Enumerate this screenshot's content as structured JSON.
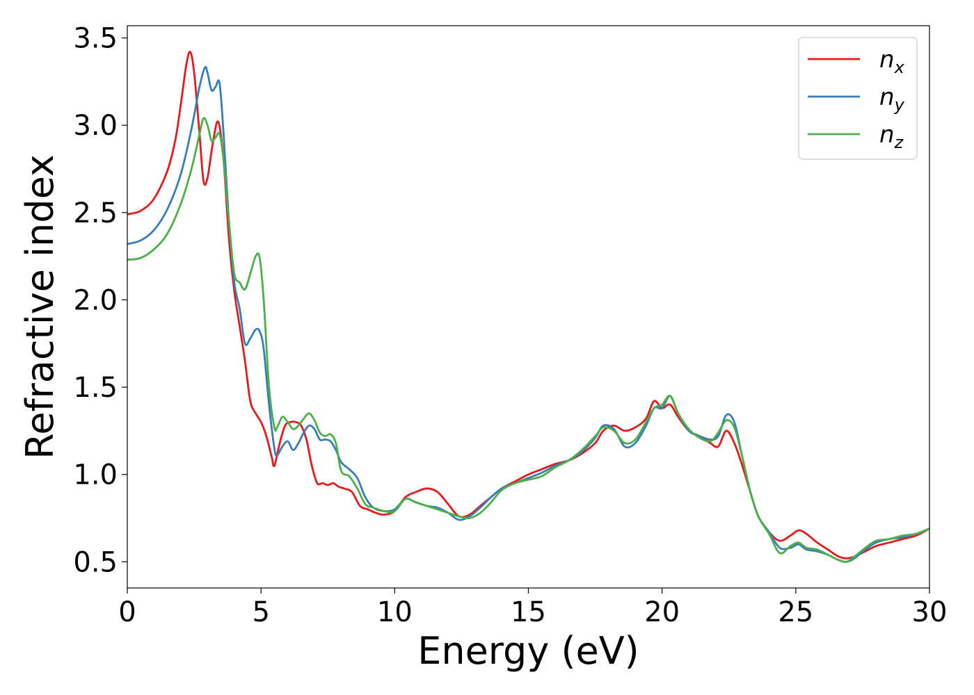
{
  "chart_data": {
    "type": "line",
    "xlabel": "Energy (eV)",
    "ylabel": "Refractive index",
    "xlim": [
      0,
      30
    ],
    "ylim": [
      0.35,
      3.57
    ],
    "xticks": [
      0,
      5,
      10,
      15,
      20,
      25,
      30
    ],
    "xtick_labels": [
      "0",
      "5",
      "10",
      "15",
      "20",
      "25",
      "30"
    ],
    "yticks": [
      0.5,
      1.0,
      1.5,
      2.0,
      2.5,
      3.0,
      3.5
    ],
    "ytick_labels": [
      "0.5",
      "1.0",
      "1.5",
      "2.0",
      "2.5",
      "3.0",
      "3.5"
    ],
    "grid": false,
    "legend_position": "top-right",
    "series": [
      {
        "name": "n_x",
        "label_main": "n",
        "label_sub": "x",
        "color": "#e41a1c",
        "x": [
          0,
          0.5,
          1.0,
          1.5,
          1.8,
          2.0,
          2.2,
          2.35,
          2.5,
          2.7,
          2.85,
          3.0,
          3.2,
          3.4,
          3.6,
          3.8,
          4.0,
          4.2,
          4.4,
          4.6,
          4.8,
          5.0,
          5.2,
          5.4,
          5.5,
          5.7,
          5.9,
          6.1,
          6.3,
          6.5,
          6.7,
          6.9,
          7.1,
          7.3,
          7.5,
          7.7,
          7.9,
          8.1,
          8.4,
          8.7,
          9.0,
          9.3,
          9.6,
          10.0,
          10.4,
          10.8,
          11.2,
          11.6,
          12.0,
          12.4,
          12.8,
          13.2,
          13.6,
          14.0,
          14.5,
          15.0,
          15.5,
          16.0,
          16.5,
          17.0,
          17.5,
          17.8,
          18.2,
          18.6,
          19.0,
          19.4,
          19.7,
          20.0,
          20.3,
          20.6,
          21.0,
          21.4,
          21.8,
          22.1,
          22.4,
          22.7,
          23.0,
          23.3,
          23.6,
          24.0,
          24.4,
          24.8,
          25.1,
          25.4,
          25.8,
          26.2,
          26.6,
          26.9,
          27.2,
          27.6,
          28.0,
          28.5,
          29.0,
          29.5,
          30.0
        ],
        "y": [
          2.49,
          2.51,
          2.58,
          2.74,
          2.92,
          3.12,
          3.34,
          3.42,
          3.3,
          2.95,
          2.68,
          2.7,
          2.9,
          3.02,
          2.8,
          2.35,
          2.05,
          1.85,
          1.65,
          1.42,
          1.35,
          1.3,
          1.22,
          1.1,
          1.05,
          1.18,
          1.28,
          1.3,
          1.3,
          1.28,
          1.2,
          1.05,
          0.95,
          0.95,
          0.94,
          0.95,
          0.93,
          0.92,
          0.9,
          0.82,
          0.8,
          0.78,
          0.77,
          0.79,
          0.87,
          0.9,
          0.92,
          0.9,
          0.83,
          0.76,
          0.77,
          0.82,
          0.87,
          0.92,
          0.96,
          1.0,
          1.03,
          1.06,
          1.08,
          1.12,
          1.18,
          1.25,
          1.28,
          1.25,
          1.27,
          1.32,
          1.42,
          1.38,
          1.4,
          1.33,
          1.25,
          1.22,
          1.18,
          1.16,
          1.25,
          1.18,
          1.05,
          0.9,
          0.76,
          0.67,
          0.62,
          0.65,
          0.68,
          0.66,
          0.61,
          0.57,
          0.53,
          0.52,
          0.53,
          0.56,
          0.59,
          0.61,
          0.63,
          0.65,
          0.69
        ]
      },
      {
        "name": "n_y",
        "label_main": "n",
        "label_sub": "y",
        "color": "#377eb8",
        "x": [
          0,
          0.5,
          1.0,
          1.5,
          2.0,
          2.4,
          2.7,
          2.9,
          3.0,
          3.15,
          3.3,
          3.45,
          3.6,
          3.8,
          4.0,
          4.2,
          4.4,
          4.6,
          4.8,
          4.95,
          5.1,
          5.3,
          5.5,
          5.6,
          5.8,
          6.0,
          6.2,
          6.4,
          6.6,
          6.8,
          7.0,
          7.2,
          7.4,
          7.6,
          7.8,
          8.0,
          8.3,
          8.6,
          8.9,
          9.2,
          9.6,
          10.0,
          10.4,
          10.8,
          11.2,
          11.6,
          12.0,
          12.4,
          12.8,
          13.2,
          13.6,
          14.0,
          14.5,
          15.0,
          15.5,
          16.0,
          16.5,
          17.0,
          17.5,
          17.8,
          18.2,
          18.6,
          19.0,
          19.4,
          19.7,
          20.0,
          20.3,
          20.6,
          21.0,
          21.4,
          21.8,
          22.1,
          22.4,
          22.7,
          23.0,
          23.3,
          23.6,
          24.0,
          24.4,
          24.8,
          25.1,
          25.4,
          25.8,
          26.2,
          26.6,
          26.9,
          27.2,
          27.6,
          28.0,
          28.5,
          29.0,
          29.5,
          30.0
        ],
        "y": [
          2.32,
          2.34,
          2.4,
          2.52,
          2.72,
          2.98,
          3.22,
          3.33,
          3.3,
          3.2,
          3.22,
          3.24,
          2.95,
          2.45,
          2.1,
          1.95,
          1.75,
          1.78,
          1.83,
          1.82,
          1.72,
          1.4,
          1.15,
          1.11,
          1.16,
          1.19,
          1.14,
          1.18,
          1.24,
          1.28,
          1.26,
          1.2,
          1.2,
          1.19,
          1.14,
          1.07,
          1.03,
          0.98,
          0.87,
          0.81,
          0.79,
          0.8,
          0.86,
          0.84,
          0.82,
          0.81,
          0.78,
          0.74,
          0.76,
          0.81,
          0.87,
          0.92,
          0.95,
          0.98,
          1.01,
          1.05,
          1.08,
          1.13,
          1.21,
          1.28,
          1.26,
          1.16,
          1.18,
          1.28,
          1.38,
          1.38,
          1.45,
          1.35,
          1.25,
          1.22,
          1.2,
          1.22,
          1.34,
          1.3,
          1.1,
          0.9,
          0.76,
          0.67,
          0.58,
          0.58,
          0.6,
          0.57,
          0.56,
          0.54,
          0.51,
          0.5,
          0.52,
          0.57,
          0.61,
          0.63,
          0.64,
          0.66,
          0.69
        ]
      },
      {
        "name": "n_z",
        "label_main": "n",
        "label_sub": "z",
        "color": "#4daf4a",
        "x": [
          0,
          0.5,
          1.0,
          1.5,
          2.0,
          2.4,
          2.7,
          2.85,
          3.0,
          3.15,
          3.3,
          3.45,
          3.6,
          3.8,
          4.0,
          4.2,
          4.4,
          4.6,
          4.8,
          4.95,
          5.1,
          5.3,
          5.5,
          5.6,
          5.8,
          6.0,
          6.2,
          6.4,
          6.6,
          6.8,
          7.0,
          7.2,
          7.4,
          7.6,
          7.8,
          8.0,
          8.3,
          8.6,
          8.9,
          9.2,
          9.6,
          10.0,
          10.4,
          10.8,
          11.2,
          11.6,
          12.0,
          12.4,
          12.8,
          13.2,
          13.6,
          14.0,
          14.5,
          15.0,
          15.5,
          16.0,
          16.5,
          17.0,
          17.5,
          17.8,
          18.2,
          18.6,
          19.0,
          19.4,
          19.7,
          20.0,
          20.3,
          20.6,
          21.0,
          21.4,
          21.8,
          22.1,
          22.4,
          22.7,
          23.0,
          23.3,
          23.6,
          24.0,
          24.4,
          24.8,
          25.1,
          25.4,
          25.8,
          26.2,
          26.6,
          26.9,
          27.2,
          27.6,
          28.0,
          28.5,
          29.0,
          29.5,
          30.0
        ],
        "y": [
          2.23,
          2.24,
          2.29,
          2.38,
          2.55,
          2.75,
          2.95,
          3.04,
          3.0,
          2.91,
          2.93,
          2.95,
          2.8,
          2.45,
          2.15,
          2.1,
          2.06,
          2.15,
          2.25,
          2.24,
          2.0,
          1.5,
          1.27,
          1.27,
          1.33,
          1.3,
          1.26,
          1.28,
          1.32,
          1.35,
          1.31,
          1.24,
          1.22,
          1.23,
          1.18,
          1.02,
          0.99,
          0.92,
          0.83,
          0.81,
          0.79,
          0.79,
          0.86,
          0.84,
          0.82,
          0.8,
          0.78,
          0.76,
          0.75,
          0.78,
          0.84,
          0.91,
          0.95,
          0.97,
          0.99,
          1.04,
          1.08,
          1.14,
          1.22,
          1.27,
          1.25,
          1.18,
          1.2,
          1.3,
          1.38,
          1.4,
          1.45,
          1.35,
          1.26,
          1.21,
          1.19,
          1.24,
          1.31,
          1.27,
          1.1,
          0.9,
          0.76,
          0.66,
          0.55,
          0.59,
          0.61,
          0.58,
          0.57,
          0.54,
          0.51,
          0.5,
          0.53,
          0.58,
          0.62,
          0.63,
          0.65,
          0.66,
          0.69
        ]
      }
    ]
  }
}
